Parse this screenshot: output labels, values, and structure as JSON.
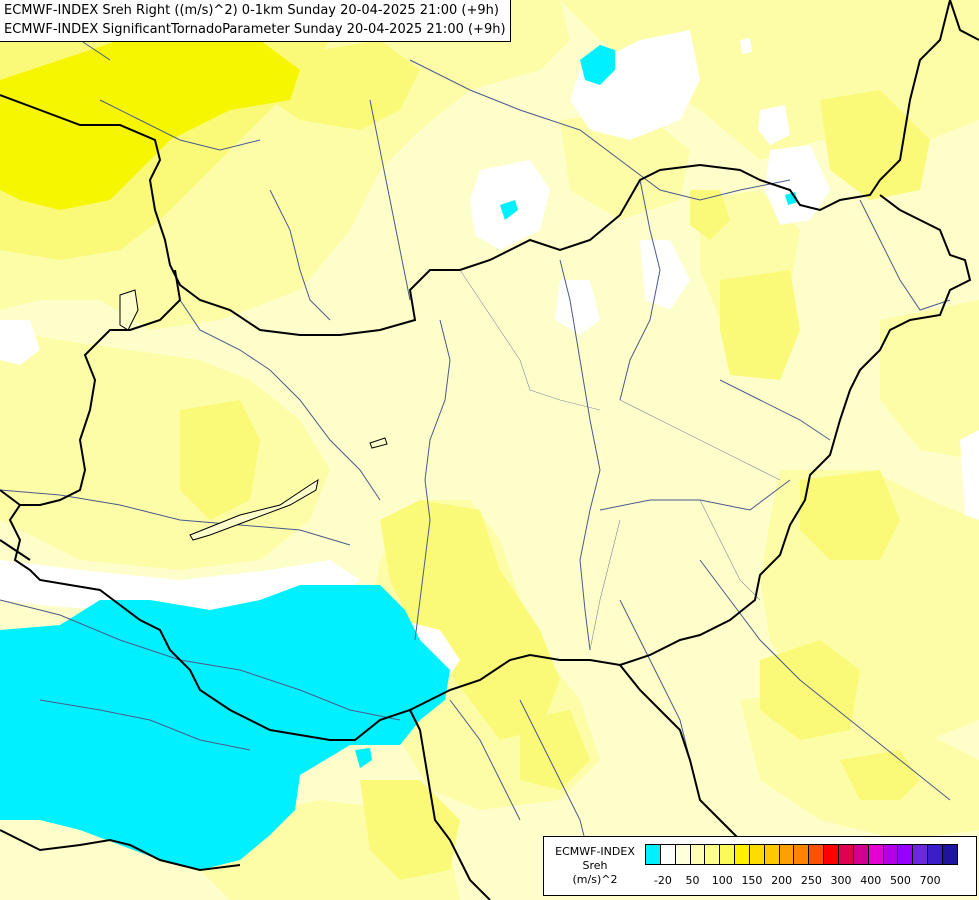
{
  "title": {
    "line1": "ECMWF-INDEX Sreh Right ((m/s)^2) 0-1km Sunday 20-04-2025 21:00 (+9h)",
    "line2": "ECMWF-INDEX SignificantTornadoParameter Sunday 20-04-2025 21:00 (+9h)"
  },
  "legend": {
    "title_line1": "ECMWF-INDEX",
    "title_line2": "Sreh",
    "title_line3": "(m/s)^2",
    "swatches": [
      "#00f0ff",
      "#ffffff",
      "#ffffdc",
      "#ffffb4",
      "#ffff8c",
      "#fafa5a",
      "#fff000",
      "#ffdc00",
      "#ffc800",
      "#ffa000",
      "#ff8200",
      "#ff5000",
      "#ff0000",
      "#e10050",
      "#d2008c",
      "#e600d2",
      "#b400e6",
      "#9600ff",
      "#6e28dc",
      "#3c1ec8",
      "#1e14a0"
    ],
    "ticks": [
      "-20",
      "50",
      "100",
      "150",
      "200",
      "250",
      "300",
      "400",
      "500",
      "700"
    ]
  },
  "colors": {
    "cyan": "#00f0ff",
    "white": "#ffffff",
    "pale_yellow": "#fefeca",
    "light_yellow": "#fdfda8",
    "yellow": "#fafa78",
    "strong_yellow": "#f6f600",
    "border": "#000000",
    "river": "#4a5a8c"
  }
}
